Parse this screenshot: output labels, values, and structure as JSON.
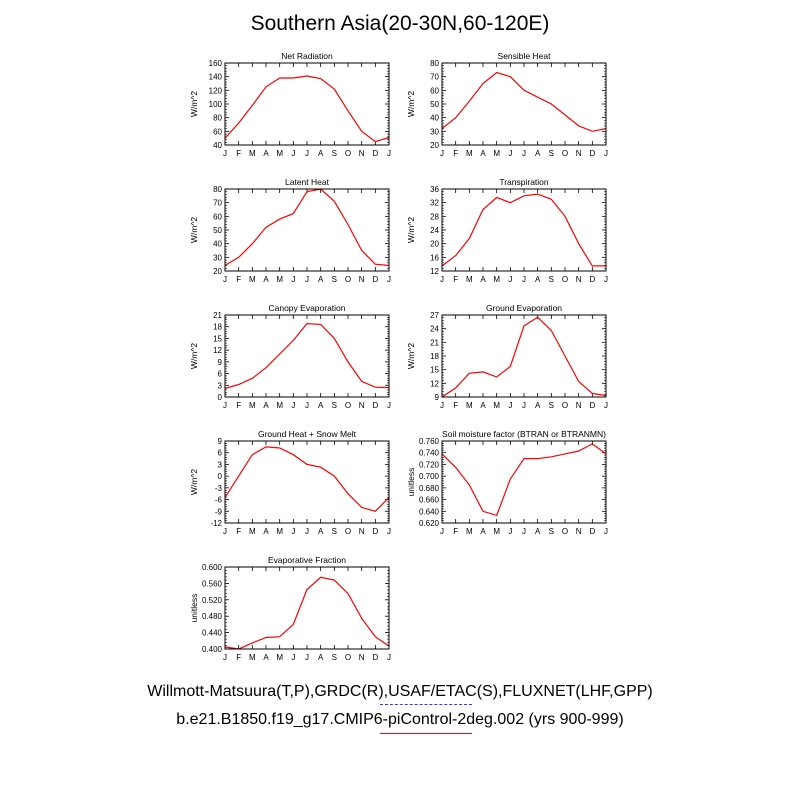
{
  "title": "Southern Asia(20-30N,60-120E)",
  "legend": {
    "observations": "Willmott-Matsuura(T,P),GRDC(R),USAF/ETAC(S),FLUXNET(LHF,GPP)",
    "model": "b.e21.B1850.f19_g17.CMIP6-piControl-2deg.002 (yrs 900-999)",
    "observations_color": "#3333ff",
    "model_color": "#ff0000"
  },
  "chart_data": [
    {
      "type": "line",
      "title": "Net Radiation",
      "ylabel": "W/m^2",
      "x": [
        "J",
        "F",
        "M",
        "A",
        "M",
        "J",
        "J",
        "A",
        "S",
        "O",
        "N",
        "D",
        "J"
      ],
      "ylim": [
        40,
        160
      ],
      "yticks": [
        "40",
        "60",
        "80",
        "100",
        "120",
        "140",
        "160"
      ],
      "series": [
        {
          "values": [
            50,
            72,
            98,
            125,
            138,
            138,
            141,
            137,
            122,
            90,
            60,
            45,
            51
          ],
          "color": "#ff0000"
        }
      ]
    },
    {
      "type": "line",
      "title": "Sensible Heat",
      "ylabel": "W/m^2",
      "x": [
        "J",
        "F",
        "M",
        "A",
        "M",
        "J",
        "J",
        "A",
        "S",
        "O",
        "N",
        "D",
        "J"
      ],
      "ylim": [
        20,
        80
      ],
      "yticks": [
        "20",
        "30",
        "40",
        "50",
        "60",
        "70",
        "80"
      ],
      "series": [
        {
          "values": [
            32,
            40,
            52,
            65,
            73,
            70,
            60,
            55,
            50,
            42,
            34,
            30,
            32
          ],
          "color": "#ff0000"
        }
      ]
    },
    {
      "type": "line",
      "title": "Latent Heat",
      "ylabel": "W/m^2",
      "x": [
        "J",
        "F",
        "M",
        "A",
        "M",
        "J",
        "J",
        "A",
        "S",
        "O",
        "N",
        "D",
        "J"
      ],
      "ylim": [
        20,
        80
      ],
      "yticks": [
        "20",
        "30",
        "40",
        "50",
        "60",
        "70",
        "80"
      ],
      "series": [
        {
          "values": [
            24,
            30,
            40,
            52,
            58,
            62,
            78,
            80,
            71,
            54,
            35,
            25,
            24
          ],
          "color": "#ff0000"
        }
      ]
    },
    {
      "type": "line",
      "title": "Transpiration",
      "ylabel": "W/m^2",
      "x": [
        "J",
        "F",
        "M",
        "A",
        "M",
        "J",
        "J",
        "A",
        "S",
        "O",
        "N",
        "D",
        "J"
      ],
      "ylim": [
        12,
        36
      ],
      "yticks": [
        "12",
        "16",
        "20",
        "24",
        "28",
        "32",
        "36"
      ],
      "series": [
        {
          "values": [
            13.5,
            16.5,
            21.5,
            30,
            33.5,
            32,
            34,
            34.5,
            33,
            28,
            20,
            13.5,
            13.5
          ],
          "color": "#ff0000"
        }
      ]
    },
    {
      "type": "line",
      "title": "Canopy Evaporation",
      "ylabel": "W/m^2",
      "x": [
        "J",
        "F",
        "M",
        "A",
        "M",
        "J",
        "J",
        "A",
        "S",
        "O",
        "N",
        "D",
        "J"
      ],
      "ylim": [
        0,
        21
      ],
      "yticks": [
        "0",
        "3",
        "6",
        "9",
        "12",
        "15",
        "18",
        "21"
      ],
      "series": [
        {
          "values": [
            2.2,
            3.2,
            4.8,
            7.5,
            11,
            14.5,
            18.8,
            18.6,
            15,
            9,
            4,
            2.5,
            2.4
          ],
          "color": "#ff0000"
        }
      ]
    },
    {
      "type": "line",
      "title": "Ground Evaporation",
      "ylabel": "W/m^2",
      "x": [
        "J",
        "F",
        "M",
        "A",
        "M",
        "J",
        "J",
        "A",
        "S",
        "O",
        "N",
        "D",
        "J"
      ],
      "ylim": [
        9,
        27
      ],
      "yticks": [
        "9",
        "12",
        "15",
        "18",
        "21",
        "24",
        "27"
      ],
      "series": [
        {
          "values": [
            9,
            11,
            14.2,
            14.5,
            13.4,
            15.7,
            24.6,
            26.5,
            23.6,
            18,
            12.4,
            9.8,
            9.3
          ],
          "color": "#ff0000"
        }
      ]
    },
    {
      "type": "line",
      "title": "Ground Heat + Snow Melt",
      "ylabel": "W/m^2",
      "x": [
        "J",
        "F",
        "M",
        "A",
        "M",
        "J",
        "J",
        "A",
        "S",
        "O",
        "N",
        "D",
        "J"
      ],
      "ylim": [
        -12,
        9
      ],
      "yticks": [
        "-12",
        "-9",
        "-6",
        "-3",
        "0",
        "3",
        "6",
        "9"
      ],
      "series": [
        {
          "values": [
            -5.5,
            0,
            5.5,
            7.5,
            7.2,
            5.5,
            3,
            2.3,
            0,
            -4.5,
            -8,
            -9,
            -5.5
          ],
          "color": "#ff0000"
        }
      ]
    },
    {
      "type": "line",
      "title": "Soil moisture factor (BTRAN or BTRANMN)",
      "ylabel": "unitless",
      "x": [
        "J",
        "F",
        "M",
        "A",
        "M",
        "J",
        "J",
        "A",
        "S",
        "O",
        "N",
        "D",
        "J"
      ],
      "ylim": [
        0.62,
        0.76
      ],
      "yticks": [
        "0.620",
        "0.640",
        "0.660",
        "0.680",
        "0.700",
        "0.720",
        "0.740",
        "0.760"
      ],
      "series": [
        {
          "values": [
            0.738,
            0.715,
            0.685,
            0.64,
            0.633,
            0.695,
            0.73,
            0.73,
            0.733,
            0.738,
            0.743,
            0.755,
            0.738
          ],
          "color": "#ff0000"
        }
      ]
    },
    {
      "type": "line",
      "title": "Evaporative Fraction",
      "ylabel": "unitless",
      "x": [
        "J",
        "F",
        "M",
        "A",
        "M",
        "J",
        "J",
        "A",
        "S",
        "O",
        "N",
        "D",
        "J"
      ],
      "ylim": [
        0.4,
        0.6
      ],
      "yticks": [
        "0.400",
        "0.440",
        "0.480",
        "0.520",
        "0.560",
        "0.600"
      ],
      "series": [
        {
          "values": [
            0.405,
            0.4,
            0.415,
            0.428,
            0.43,
            0.46,
            0.545,
            0.575,
            0.568,
            0.535,
            0.475,
            0.43,
            0.407
          ],
          "color": "#ff0000"
        }
      ]
    }
  ]
}
